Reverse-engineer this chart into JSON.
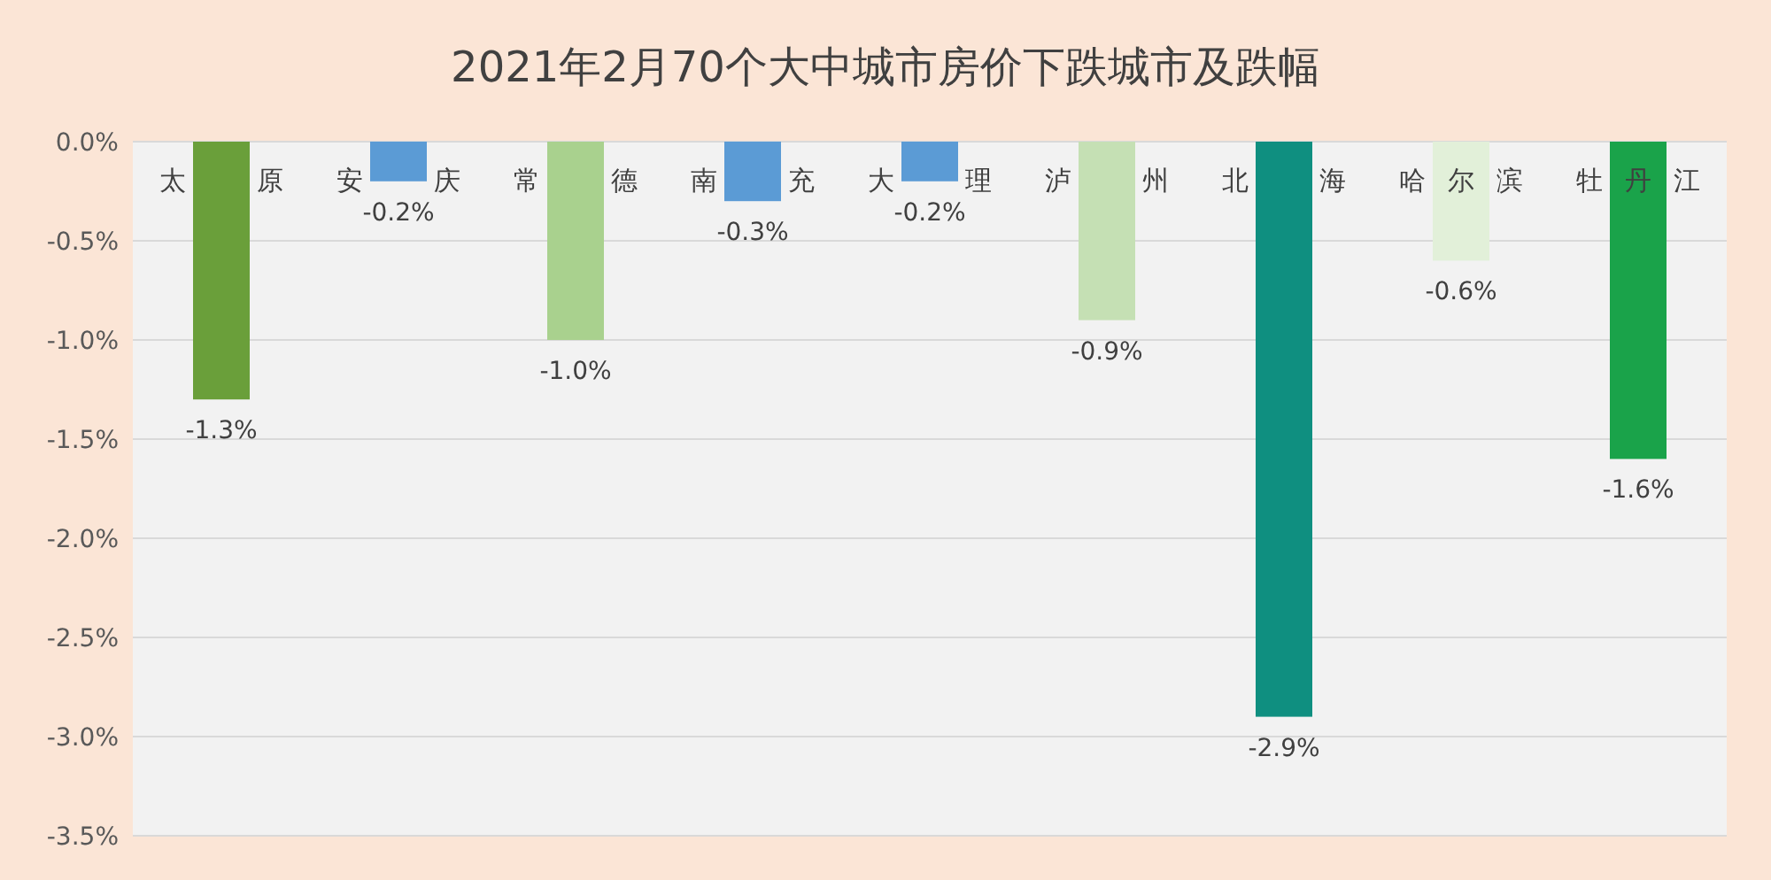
{
  "chart_data": {
    "type": "bar",
    "title": "2021年2月70个大中城市房价下跌城市及跌幅",
    "categories": [
      "太原",
      "安庆",
      "常德",
      "南充",
      "大理",
      "泸州",
      "北海",
      "哈尔滨",
      "牡丹江"
    ],
    "values": [
      -1.3,
      -0.2,
      -1.0,
      -0.3,
      -0.2,
      -0.9,
      -2.9,
      -0.6,
      -1.6
    ],
    "colors": [
      "#6a9f3a",
      "#5b9bd5",
      "#a9d18e",
      "#5b9bd5",
      "#5b9bd5",
      "#c5e0b4",
      "#0f8f80",
      "#e2f0d9",
      "#1aa34a"
    ],
    "value_labels": [
      "-1.3%",
      "-0.2%",
      "-1.0%",
      "-0.3%",
      "-0.2%",
      "-0.9%",
      "-2.9%",
      "-0.6%",
      "-1.6%"
    ],
    "ylim": [
      -3.5,
      0
    ],
    "yticks": [
      {
        "value": 0,
        "label": "0.0%"
      },
      {
        "value": -0.5,
        "label": "-0.5%"
      },
      {
        "value": -1,
        "label": "-1.0%"
      },
      {
        "value": -1.5,
        "label": "-1.5%"
      },
      {
        "value": -2,
        "label": "-2.0%"
      },
      {
        "value": -2.5,
        "label": "-2.5%"
      },
      {
        "value": -3,
        "label": "-3.0%"
      },
      {
        "value": -3.5,
        "label": "-3.5%"
      }
    ],
    "grid": "y"
  }
}
